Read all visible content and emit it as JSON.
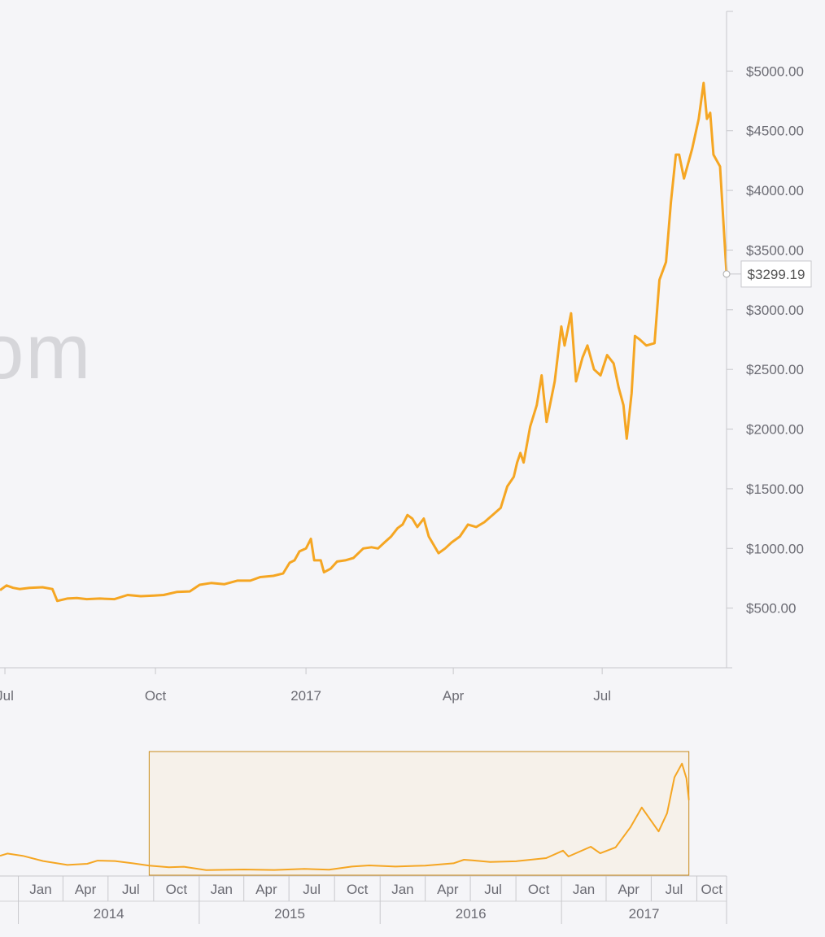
{
  "watermark": "om",
  "chart_data": {
    "type": "line",
    "title": "",
    "xlabel": "",
    "ylabel": "",
    "line_color": "#f5a623",
    "main_x_range": [
      "2016-06-28",
      "2017-09-15"
    ],
    "ylim": [
      0,
      5500
    ],
    "y_ticks": [
      500,
      1000,
      1500,
      2000,
      2500,
      3000,
      3500,
      4000,
      4500,
      5000
    ],
    "y_tick_labels": [
      "$500.00",
      "$1000.00",
      "$1500.00",
      "$2000.00",
      "$2500.00",
      "$3000.00",
      "$3500.00",
      "$4000.00",
      "$4500.00",
      "$5000.00"
    ],
    "x_ticks": [
      {
        "date": "2016-07-01",
        "label": "Jul"
      },
      {
        "date": "2016-10-01",
        "label": "Oct"
      },
      {
        "date": "2017-01-01",
        "label": "2017"
      },
      {
        "date": "2017-04-01",
        "label": "Apr"
      },
      {
        "date": "2017-07-01",
        "label": "Jul"
      }
    ],
    "last_value_label": "$3299.19",
    "series": [
      {
        "points": [
          [
            "2016-06-28",
            650
          ],
          [
            "2016-07-02",
            690
          ],
          [
            "2016-07-06",
            670
          ],
          [
            "2016-07-10",
            660
          ],
          [
            "2016-07-16",
            670
          ],
          [
            "2016-07-24",
            675
          ],
          [
            "2016-07-30",
            660
          ],
          [
            "2016-08-02",
            560
          ],
          [
            "2016-08-08",
            580
          ],
          [
            "2016-08-14",
            585
          ],
          [
            "2016-08-20",
            575
          ],
          [
            "2016-08-28",
            580
          ],
          [
            "2016-09-06",
            575
          ],
          [
            "2016-09-14",
            610
          ],
          [
            "2016-09-22",
            600
          ],
          [
            "2016-09-30",
            605
          ],
          [
            "2016-10-06",
            610
          ],
          [
            "2016-10-14",
            635
          ],
          [
            "2016-10-22",
            640
          ],
          [
            "2016-10-28",
            695
          ],
          [
            "2016-11-04",
            710
          ],
          [
            "2016-11-12",
            700
          ],
          [
            "2016-11-20",
            730
          ],
          [
            "2016-11-28",
            730
          ],
          [
            "2016-12-04",
            760
          ],
          [
            "2016-12-12",
            770
          ],
          [
            "2016-12-18",
            790
          ],
          [
            "2016-12-22",
            880
          ],
          [
            "2016-12-25",
            900
          ],
          [
            "2016-12-28",
            975
          ],
          [
            "2017-01-01",
            1000
          ],
          [
            "2017-01-04",
            1080
          ],
          [
            "2017-01-06",
            900
          ],
          [
            "2017-01-10",
            900
          ],
          [
            "2017-01-12",
            800
          ],
          [
            "2017-01-16",
            830
          ],
          [
            "2017-01-20",
            890
          ],
          [
            "2017-01-25",
            900
          ],
          [
            "2017-01-30",
            920
          ],
          [
            "2017-02-05",
            1000
          ],
          [
            "2017-02-10",
            1010
          ],
          [
            "2017-02-14",
            1000
          ],
          [
            "2017-02-18",
            1050
          ],
          [
            "2017-02-22",
            1100
          ],
          [
            "2017-02-26",
            1170
          ],
          [
            "2017-03-01",
            1200
          ],
          [
            "2017-03-04",
            1280
          ],
          [
            "2017-03-07",
            1250
          ],
          [
            "2017-03-10",
            1180
          ],
          [
            "2017-03-14",
            1250
          ],
          [
            "2017-03-17",
            1100
          ],
          [
            "2017-03-20",
            1030
          ],
          [
            "2017-03-23",
            960
          ],
          [
            "2017-03-27",
            1000
          ],
          [
            "2017-03-31",
            1050
          ],
          [
            "2017-04-05",
            1100
          ],
          [
            "2017-04-10",
            1200
          ],
          [
            "2017-04-15",
            1180
          ],
          [
            "2017-04-20",
            1220
          ],
          [
            "2017-04-25",
            1280
          ],
          [
            "2017-04-30",
            1340
          ],
          [
            "2017-05-04",
            1520
          ],
          [
            "2017-05-08",
            1600
          ],
          [
            "2017-05-10",
            1720
          ],
          [
            "2017-05-12",
            1800
          ],
          [
            "2017-05-14",
            1720
          ],
          [
            "2017-05-18",
            2020
          ],
          [
            "2017-05-22",
            2200
          ],
          [
            "2017-05-25",
            2450
          ],
          [
            "2017-05-28",
            2060
          ],
          [
            "2017-06-02",
            2400
          ],
          [
            "2017-06-06",
            2860
          ],
          [
            "2017-06-08",
            2700
          ],
          [
            "2017-06-12",
            2970
          ],
          [
            "2017-06-15",
            2400
          ],
          [
            "2017-06-19",
            2600
          ],
          [
            "2017-06-22",
            2700
          ],
          [
            "2017-06-26",
            2500
          ],
          [
            "2017-06-30",
            2450
          ],
          [
            "2017-07-04",
            2620
          ],
          [
            "2017-07-08",
            2550
          ],
          [
            "2017-07-11",
            2350
          ],
          [
            "2017-07-14",
            2200
          ],
          [
            "2017-07-16",
            1920
          ],
          [
            "2017-07-19",
            2300
          ],
          [
            "2017-07-21",
            2780
          ],
          [
            "2017-07-24",
            2750
          ],
          [
            "2017-07-28",
            2700
          ],
          [
            "2017-08-02",
            2720
          ],
          [
            "2017-08-05",
            3250
          ],
          [
            "2017-08-09",
            3400
          ],
          [
            "2017-08-12",
            3900
          ],
          [
            "2017-08-15",
            4300
          ],
          [
            "2017-08-17",
            4300
          ],
          [
            "2017-08-20",
            4100
          ],
          [
            "2017-08-25",
            4350
          ],
          [
            "2017-08-29",
            4600
          ],
          [
            "2017-09-01",
            4900
          ],
          [
            "2017-09-03",
            4600
          ],
          [
            "2017-09-05",
            4650
          ],
          [
            "2017-09-07",
            4300
          ],
          [
            "2017-09-11",
            4200
          ],
          [
            "2017-09-15",
            3299.19
          ]
        ]
      }
    ],
    "navigator": {
      "type": "line",
      "x_range": [
        "2013-11-25",
        "2017-11-30"
      ],
      "selection": [
        "2014-09-22",
        "2017-09-15"
      ],
      "month_labels": [
        "Jan",
        "Apr",
        "Jul",
        "Oct",
        "Jan",
        "Apr",
        "Jul",
        "Oct",
        "Jan",
        "Apr",
        "Jul",
        "Oct",
        "Jan",
        "Apr",
        "Jul",
        "Oct"
      ],
      "month_ticks": [
        "2014-01-01",
        "2014-04-01",
        "2014-07-01",
        "2014-10-01",
        "2015-01-01",
        "2015-04-01",
        "2015-07-01",
        "2015-10-01",
        "2016-01-01",
        "2016-04-01",
        "2016-07-01",
        "2016-10-01",
        "2017-01-01",
        "2017-04-01",
        "2017-07-01",
        "2017-10-01"
      ],
      "years": [
        "2014",
        "2015",
        "2016",
        "2017"
      ],
      "points": [
        [
          "2013-11-25",
          850
        ],
        [
          "2013-12-10",
          950
        ],
        [
          "2014-01-10",
          850
        ],
        [
          "2014-02-20",
          620
        ],
        [
          "2014-04-10",
          450
        ],
        [
          "2014-05-20",
          500
        ],
        [
          "2014-06-10",
          640
        ],
        [
          "2014-07-15",
          620
        ],
        [
          "2014-08-20",
          520
        ],
        [
          "2014-09-22",
          420
        ],
        [
          "2014-11-01",
          350
        ],
        [
          "2014-12-01",
          370
        ],
        [
          "2015-01-15",
          220
        ],
        [
          "2015-04-01",
          250
        ],
        [
          "2015-06-01",
          230
        ],
        [
          "2015-08-01",
          280
        ],
        [
          "2015-09-20",
          240
        ],
        [
          "2015-11-05",
          380
        ],
        [
          "2015-12-10",
          430
        ],
        [
          "2016-02-01",
          380
        ],
        [
          "2016-04-01",
          420
        ],
        [
          "2016-05-28",
          520
        ],
        [
          "2016-06-18",
          680
        ],
        [
          "2016-07-05",
          650
        ],
        [
          "2016-08-10",
          580
        ],
        [
          "2016-10-01",
          610
        ],
        [
          "2016-12-01",
          750
        ],
        [
          "2017-01-04",
          1080
        ],
        [
          "2017-01-15",
          820
        ],
        [
          "2017-03-01",
          1250
        ],
        [
          "2017-03-20",
          960
        ],
        [
          "2017-04-20",
          1220
        ],
        [
          "2017-05-20",
          2100
        ],
        [
          "2017-06-12",
          2970
        ],
        [
          "2017-07-16",
          1920
        ],
        [
          "2017-08-02",
          2720
        ],
        [
          "2017-08-17",
          4300
        ],
        [
          "2017-09-01",
          4900
        ],
        [
          "2017-09-10",
          4250
        ],
        [
          "2017-09-15",
          3299.19
        ]
      ]
    }
  }
}
